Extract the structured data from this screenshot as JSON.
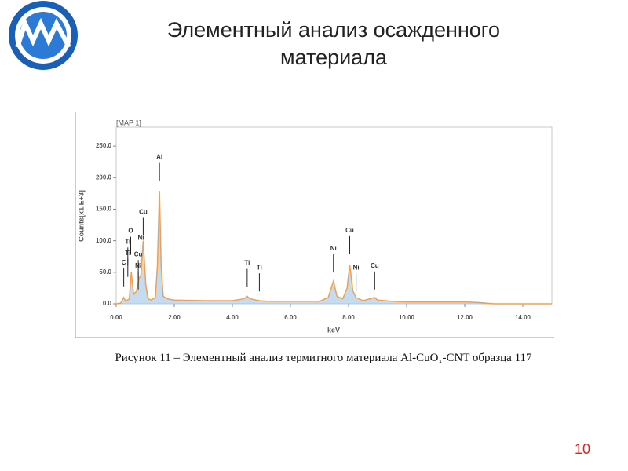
{
  "slide": {
    "title_lines": [
      "Элементный анализ осажденного",
      "материала"
    ],
    "page_number": "10",
    "caption": {
      "before": "Рисунок 11 – Элементный анализ термитного материала Al-CuO",
      "subscript": "x",
      "after": "-CNT образца 117"
    }
  },
  "chart_data": {
    "type": "line",
    "title": "[MAP 1]",
    "y_label": "Counts[x1.E+3]",
    "x_label": "keV",
    "color": "#f0a050",
    "x": [
      0.0,
      0.15,
      0.26,
      0.33,
      0.45,
      0.52,
      0.6,
      0.7,
      0.78,
      0.85,
      0.93,
      1.02,
      1.1,
      1.2,
      1.35,
      1.42,
      1.49,
      1.55,
      1.62,
      1.75,
      2.0,
      3.0,
      4.0,
      4.4,
      4.51,
      4.6,
      4.93,
      5.2,
      6.0,
      7.0,
      7.3,
      7.48,
      7.6,
      7.8,
      7.95,
      8.04,
      8.15,
      8.26,
      8.5,
      8.9,
      9.0,
      9.5,
      10.0,
      12.0,
      12.5,
      13.0,
      15.0
    ],
    "values": [
      0,
      1,
      10,
      4,
      8,
      50,
      15,
      20,
      40,
      45,
      100,
      30,
      8,
      6,
      10,
      60,
      179,
      60,
      12,
      8,
      6,
      5,
      5,
      8,
      12,
      8,
      5,
      4,
      4,
      4,
      10,
      36,
      12,
      8,
      25,
      62,
      20,
      10,
      5,
      10,
      6,
      4,
      3,
      3,
      2,
      0,
      0
    ],
    "xlim": [
      0,
      15
    ],
    "ylim": [
      0,
      280
    ],
    "xticks": [
      {
        "value": 0,
        "label": "0.00"
      },
      {
        "value": 2,
        "label": "2.00"
      },
      {
        "value": 4,
        "label": "4.00"
      },
      {
        "value": 6,
        "label": "6.00"
      },
      {
        "value": 8,
        "label": "8.00"
      },
      {
        "value": 10,
        "label": "10.00"
      },
      {
        "value": 12,
        "label": "12.00"
      },
      {
        "value": 14,
        "label": "14.00"
      }
    ],
    "yticks": [
      {
        "value": 0,
        "label": "0.0"
      },
      {
        "value": 50,
        "label": "50.0"
      },
      {
        "value": 100,
        "label": "100.0"
      },
      {
        "value": 150,
        "label": "150.0"
      },
      {
        "value": 200,
        "label": "200.0"
      },
      {
        "value": 250,
        "label": "250.0"
      }
    ],
    "annotations": [
      {
        "text": "C",
        "x": 0.26,
        "y": 65
      },
      {
        "text": "Ti",
        "x": 0.4,
        "y": 98
      },
      {
        "text": "Ti",
        "x": 0.4,
        "y": 80
      },
      {
        "text": "O",
        "x": 0.5,
        "y": 115
      },
      {
        "text": "Ni",
        "x": 0.76,
        "y": 60
      },
      {
        "text": "Cu",
        "x": 0.76,
        "y": 78
      },
      {
        "text": "Ni",
        "x": 0.85,
        "y": 104
      },
      {
        "text": "Cu",
        "x": 0.93,
        "y": 145
      },
      {
        "text": "Al",
        "x": 1.49,
        "y": 232
      },
      {
        "text": "Ti",
        "x": 4.51,
        "y": 64
      },
      {
        "text": "Ti",
        "x": 4.93,
        "y": 57
      },
      {
        "text": "Ni",
        "x": 7.48,
        "y": 87
      },
      {
        "text": "Cu",
        "x": 8.04,
        "y": 116
      },
      {
        "text": "Ni",
        "x": 8.26,
        "y": 57
      },
      {
        "text": "Cu",
        "x": 8.9,
        "y": 60
      }
    ]
  }
}
